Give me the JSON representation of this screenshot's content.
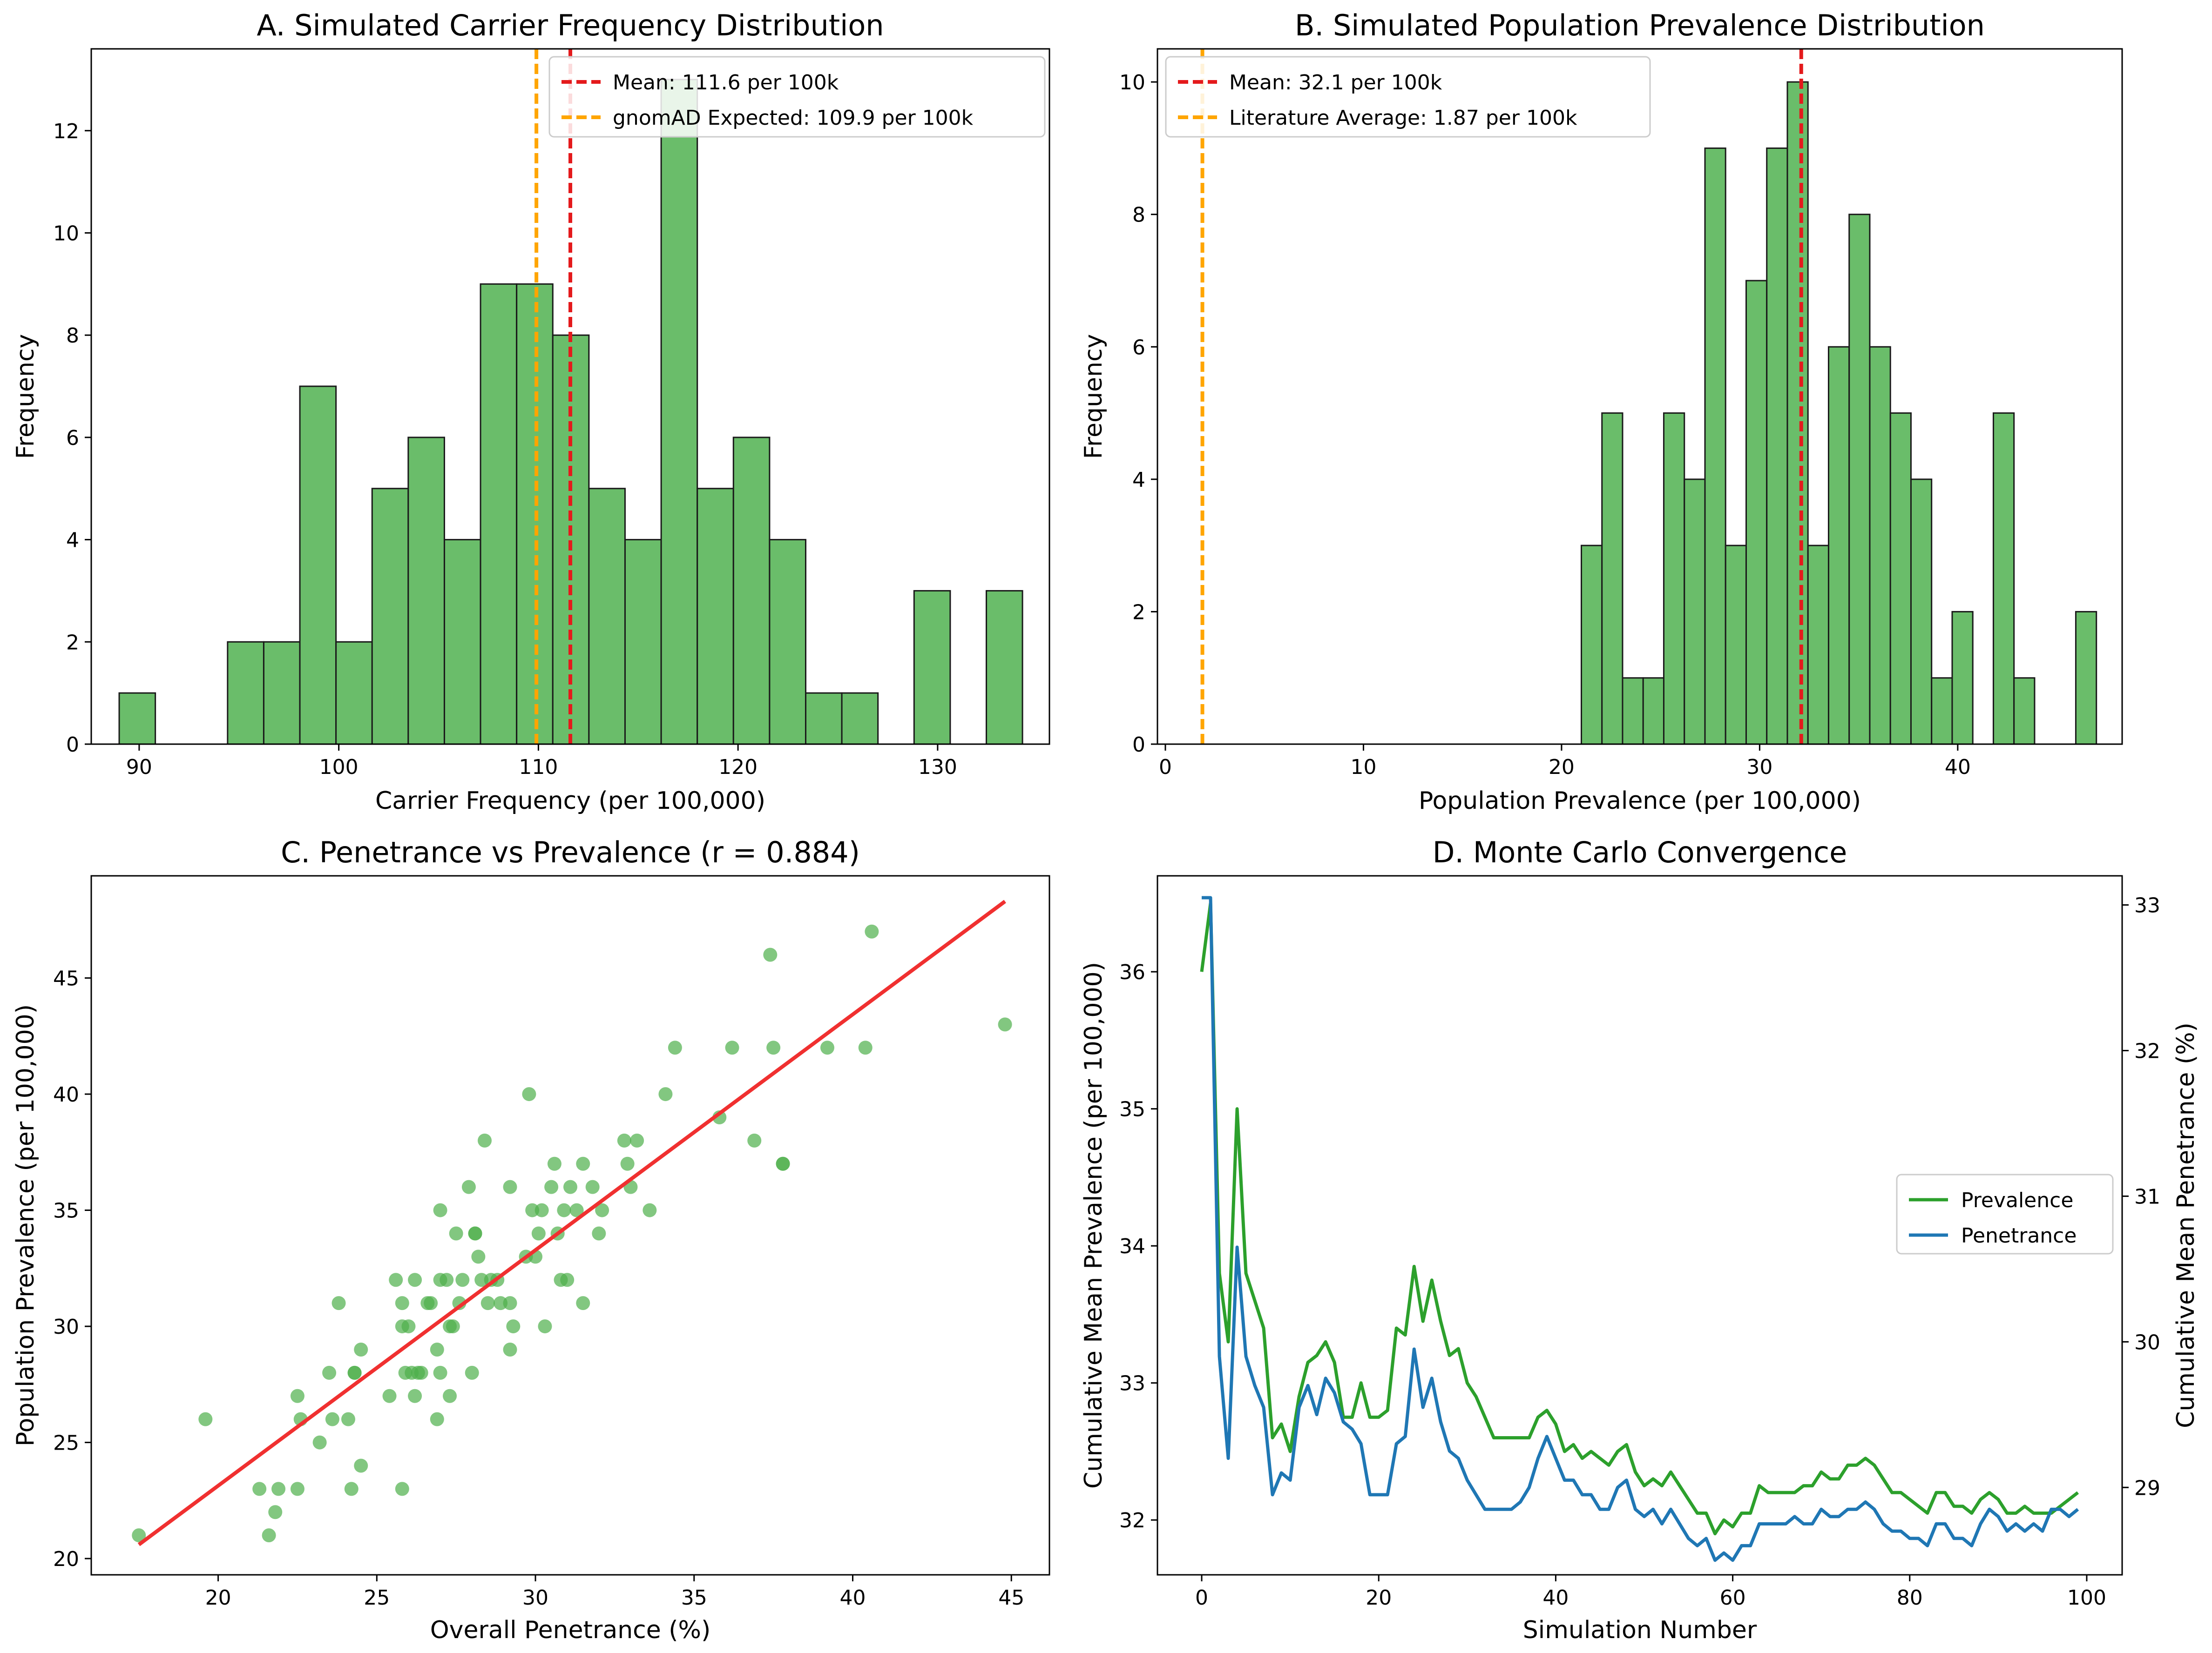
{
  "figure": {
    "panels": [
      "panel-a",
      "panel-b",
      "panel-c",
      "panel-d"
    ]
  },
  "colors": {
    "bar_fill": "#6abd6a",
    "bar_edge": "#1a1a1a",
    "mean_line": "#e41a1c",
    "reference_line": "#ffa500",
    "scatter": "#4daf4a",
    "fit_line": "#f03030",
    "prevalence_line": "#2ca02c",
    "penetrance_line": "#1f77b4"
  },
  "chart_data": [
    {
      "id": "panel-a",
      "type": "bar",
      "title": "A. Simulated Carrier Frequency Distribution",
      "xlabel": "Carrier Frequency (per 100,000)",
      "ylabel": "Frequency",
      "xlim": [
        87.6,
        135.6
      ],
      "ylim": [
        0,
        13.6
      ],
      "xticks": [
        90,
        100,
        110,
        120,
        130
      ],
      "yticks": [
        0,
        2,
        4,
        6,
        8,
        10,
        12
      ],
      "bin_start": 89.0,
      "bin_width": 1.81,
      "counts": [
        1,
        0,
        0,
        2,
        2,
        7,
        2,
        5,
        6,
        4,
        9,
        9,
        8,
        5,
        4,
        13,
        5,
        6,
        4,
        1,
        1,
        0,
        3,
        0,
        3
      ],
      "lines": [
        {
          "label": "Mean: 111.6 per 100k",
          "x": 111.6,
          "kind": "mean"
        },
        {
          "label": "gnomAD Expected: 109.9 per 100k",
          "x": 109.9,
          "kind": "reference"
        }
      ],
      "legend": "top-right",
      "grid": false
    },
    {
      "id": "panel-b",
      "type": "bar",
      "title": "B. Simulated Population Prevalence Distribution",
      "xlabel": "Population Prevalence (per 100,000)",
      "ylabel": "Frequency",
      "xlim": [
        -0.4,
        48.3
      ],
      "ylim": [
        0,
        10.5
      ],
      "xticks": [
        0,
        10,
        20,
        30,
        40
      ],
      "yticks": [
        0,
        2,
        4,
        6,
        8,
        10
      ],
      "bin_start": 21.0,
      "bin_width": 1.04,
      "counts": [
        3,
        5,
        1,
        1,
        5,
        4,
        9,
        3,
        7,
        9,
        10,
        3,
        6,
        8,
        6,
        5,
        4,
        1,
        2,
        0,
        5,
        1,
        0,
        0,
        2
      ],
      "lines": [
        {
          "label": "Mean: 32.1 per 100k",
          "x": 32.1,
          "kind": "mean"
        },
        {
          "label": "Literature Average: 1.87 per 100k",
          "x": 1.87,
          "kind": "reference"
        }
      ],
      "legend": "top-left",
      "grid": false
    },
    {
      "id": "panel-c",
      "type": "scatter",
      "title": "C. Penetrance vs Prevalence (r = 0.884)",
      "xlabel": "Overall Penetrance (%)",
      "ylabel": "Population Prevalence (per 100,000)",
      "xlim": [
        16.0,
        46.2
      ],
      "ylim": [
        19.3,
        49.4
      ],
      "xticks": [
        20,
        25,
        30,
        35,
        40,
        45
      ],
      "yticks": [
        20,
        25,
        30,
        35,
        40,
        45
      ],
      "points": [
        [
          17.5,
          21
        ],
        [
          19.6,
          26
        ],
        [
          21.3,
          23
        ],
        [
          21.6,
          21
        ],
        [
          21.8,
          22
        ],
        [
          21.9,
          23
        ],
        [
          22.5,
          27
        ],
        [
          22.5,
          23
        ],
        [
          22.6,
          26
        ],
        [
          23.2,
          25
        ],
        [
          23.5,
          28
        ],
        [
          23.6,
          26
        ],
        [
          23.8,
          31
        ],
        [
          24.1,
          26
        ],
        [
          24.2,
          23
        ],
        [
          24.3,
          28
        ],
        [
          24.3,
          28
        ],
        [
          24.5,
          24
        ],
        [
          24.5,
          29
        ],
        [
          25.4,
          27
        ],
        [
          25.6,
          32
        ],
        [
          25.8,
          23
        ],
        [
          25.8,
          30
        ],
        [
          25.8,
          31
        ],
        [
          25.9,
          28
        ],
        [
          26.0,
          30
        ],
        [
          26.1,
          28
        ],
        [
          26.2,
          32
        ],
        [
          26.2,
          27
        ],
        [
          26.3,
          28
        ],
        [
          26.4,
          28
        ],
        [
          26.6,
          31
        ],
        [
          26.7,
          31
        ],
        [
          26.9,
          26
        ],
        [
          26.9,
          29
        ],
        [
          27.0,
          32
        ],
        [
          27.0,
          35
        ],
        [
          27.0,
          28
        ],
        [
          27.2,
          32
        ],
        [
          27.3,
          30
        ],
        [
          27.3,
          27
        ],
        [
          27.4,
          30
        ],
        [
          27.5,
          34
        ],
        [
          27.6,
          31
        ],
        [
          27.7,
          32
        ],
        [
          27.9,
          36
        ],
        [
          28.0,
          28
        ],
        [
          28.1,
          34
        ],
        [
          28.1,
          34
        ],
        [
          28.2,
          33
        ],
        [
          28.3,
          32
        ],
        [
          28.4,
          38
        ],
        [
          28.5,
          31
        ],
        [
          28.6,
          32
        ],
        [
          28.8,
          32
        ],
        [
          28.9,
          31
        ],
        [
          29.2,
          36
        ],
        [
          29.2,
          31
        ],
        [
          29.2,
          29
        ],
        [
          29.3,
          30
        ],
        [
          29.7,
          33
        ],
        [
          29.8,
          40
        ],
        [
          29.9,
          35
        ],
        [
          30.0,
          33
        ],
        [
          30.1,
          34
        ],
        [
          30.2,
          35
        ],
        [
          30.3,
          30
        ],
        [
          30.5,
          36
        ],
        [
          30.6,
          37
        ],
        [
          30.7,
          34
        ],
        [
          30.8,
          32
        ],
        [
          30.9,
          35
        ],
        [
          31.0,
          32
        ],
        [
          31.1,
          36
        ],
        [
          31.3,
          35
        ],
        [
          31.5,
          37
        ],
        [
          31.5,
          31
        ],
        [
          31.8,
          36
        ],
        [
          32.0,
          34
        ],
        [
          32.1,
          35
        ],
        [
          32.8,
          38
        ],
        [
          32.9,
          37
        ],
        [
          33.0,
          36
        ],
        [
          33.2,
          38
        ],
        [
          33.6,
          35
        ],
        [
          34.1,
          40
        ],
        [
          34.4,
          42
        ],
        [
          35.8,
          39
        ],
        [
          36.2,
          42
        ],
        [
          36.9,
          38
        ],
        [
          37.4,
          46
        ],
        [
          37.5,
          42
        ],
        [
          37.8,
          37
        ],
        [
          37.8,
          37
        ],
        [
          39.2,
          42
        ],
        [
          40.4,
          42
        ],
        [
          40.6,
          47
        ],
        [
          44.8,
          43
        ]
      ],
      "fit": {
        "x": [
          17.5,
          44.8
        ],
        "y": [
          20.6,
          48.3
        ]
      },
      "grid": false
    },
    {
      "id": "panel-d",
      "type": "line",
      "title": "D. Monte Carlo Convergence",
      "xlabel": "Simulation Number",
      "ylabel": "Cumulative Mean Prevalence (per 100,000)",
      "ylabel_right": "Cumulative Mean Penetrance (%)",
      "xlim": [
        -5,
        104
      ],
      "ylim": [
        31.6,
        36.7
      ],
      "ylim_right": [
        28.4,
        33.2
      ],
      "xticks": [
        0,
        20,
        40,
        60,
        80,
        100
      ],
      "yticks": [
        32,
        33,
        34,
        35,
        36
      ],
      "yticks_right": [
        29,
        30,
        31,
        32,
        33
      ],
      "series": [
        {
          "name": "Prevalence",
          "axis": "left",
          "values": [
            36.0,
            36.5,
            33.8,
            33.3,
            35.0,
            33.8,
            33.6,
            33.4,
            32.6,
            32.7,
            32.5,
            32.9,
            33.15,
            33.2,
            33.3,
            33.15,
            32.75,
            32.75,
            33.0,
            32.75,
            32.75,
            32.8,
            33.4,
            33.35,
            33.85,
            33.45,
            33.75,
            33.45,
            33.2,
            33.25,
            33.0,
            32.9,
            32.75,
            32.6,
            32.6,
            32.6,
            32.6,
            32.6,
            32.75,
            32.8,
            32.7,
            32.5,
            32.55,
            32.45,
            32.5,
            32.45,
            32.4,
            32.5,
            32.55,
            32.35,
            32.25,
            32.3,
            32.25,
            32.35,
            32.25,
            32.15,
            32.05,
            32.05,
            31.9,
            32.0,
            31.95,
            32.05,
            32.05,
            32.25,
            32.2,
            32.2,
            32.2,
            32.2,
            32.25,
            32.25,
            32.35,
            32.3,
            32.3,
            32.4,
            32.4,
            32.45,
            32.4,
            32.3,
            32.2,
            32.2,
            32.15,
            32.1,
            32.05,
            32.2,
            32.2,
            32.1,
            32.1,
            32.05,
            32.15,
            32.2,
            32.15,
            32.05,
            32.05,
            32.1,
            32.05,
            32.05,
            32.05,
            32.1,
            32.15,
            32.2
          ]
        },
        {
          "name": "Penetrance",
          "axis": "right",
          "values": [
            33.05,
            33.05,
            29.9,
            29.2,
            30.65,
            29.9,
            29.7,
            29.55,
            28.95,
            29.1,
            29.05,
            29.55,
            29.7,
            29.5,
            29.75,
            29.65,
            29.45,
            29.4,
            29.3,
            28.95,
            28.95,
            28.95,
            29.3,
            29.35,
            29.95,
            29.55,
            29.75,
            29.45,
            29.25,
            29.2,
            29.05,
            28.95,
            28.85,
            28.85,
            28.85,
            28.85,
            28.9,
            29.0,
            29.2,
            29.35,
            29.2,
            29.05,
            29.05,
            28.95,
            28.95,
            28.85,
            28.85,
            29.0,
            29.05,
            28.85,
            28.8,
            28.85,
            28.75,
            28.85,
            28.75,
            28.65,
            28.6,
            28.65,
            28.5,
            28.55,
            28.5,
            28.6,
            28.6,
            28.75,
            28.75,
            28.75,
            28.75,
            28.8,
            28.75,
            28.75,
            28.85,
            28.8,
            28.8,
            28.85,
            28.85,
            28.9,
            28.85,
            28.75,
            28.7,
            28.7,
            28.65,
            28.65,
            28.6,
            28.75,
            28.75,
            28.65,
            28.65,
            28.6,
            28.75,
            28.85,
            28.8,
            28.7,
            28.75,
            28.7,
            28.75,
            28.7,
            28.85,
            28.85,
            28.8,
            28.85
          ]
        }
      ],
      "legend": "center-right",
      "grid": false
    }
  ]
}
